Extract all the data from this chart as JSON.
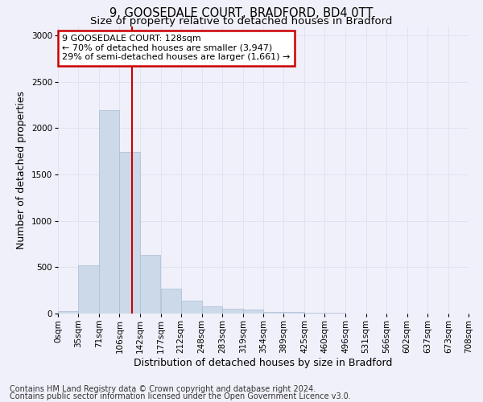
{
  "title_line1": "9, GOOSEDALE COURT, BRADFORD, BD4 0TT",
  "title_line2": "Size of property relative to detached houses in Bradford",
  "xlabel": "Distribution of detached houses by size in Bradford",
  "ylabel": "Number of detached properties",
  "bin_edges": [
    0,
    35,
    71,
    106,
    142,
    177,
    212,
    248,
    283,
    319,
    354,
    389,
    425,
    460,
    496,
    531,
    566,
    602,
    637,
    673,
    708
  ],
  "bar_heights": [
    25,
    520,
    2190,
    1740,
    630,
    270,
    140,
    80,
    50,
    40,
    20,
    15,
    10,
    5,
    3,
    3,
    2,
    1,
    1,
    1
  ],
  "bar_facecolor": "#ccd9e8",
  "bar_edgecolor": "#aabdd4",
  "property_size": 128,
  "vline_color": "#cc0000",
  "annotation_text": "9 GOOSEDALE COURT: 128sqm\n← 70% of detached houses are smaller (3,947)\n29% of semi-detached houses are larger (1,661) →",
  "annotation_box_edgecolor": "#cc0000",
  "annotation_box_facecolor": "#ffffff",
  "ylim": [
    0,
    3100
  ],
  "yticks": [
    0,
    500,
    1000,
    1500,
    2000,
    2500,
    3000
  ],
  "grid_color": "#dde0ee",
  "background_color": "#f0f0fa",
  "footer_line1": "Contains HM Land Registry data © Crown copyright and database right 2024.",
  "footer_line2": "Contains public sector information licensed under the Open Government Licence v3.0.",
  "title_fontsize": 10.5,
  "subtitle_fontsize": 9.5,
  "axis_label_fontsize": 9,
  "tick_fontsize": 7.5,
  "footer_fontsize": 7,
  "annot_fontsize": 8
}
